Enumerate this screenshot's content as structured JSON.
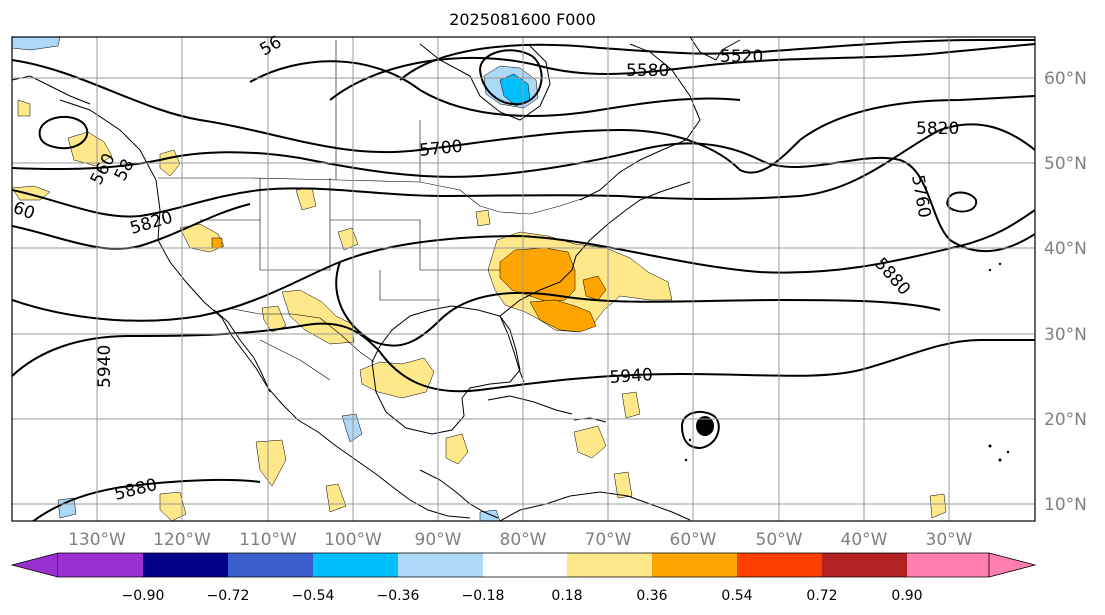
{
  "title": "2025081600 F000",
  "longitude_labels": [
    "130°W",
    "120°W",
    "110°W",
    "100°W",
    "90°W",
    "80°W",
    "70°W",
    "60°W",
    "50°W",
    "40°W",
    "30°W"
  ],
  "latitude_labels": [
    "60°N",
    "50°N",
    "40°N",
    "30°N",
    "20°N",
    "10°N"
  ],
  "contour_labels": [
    "5520",
    "5580",
    "5700",
    "5820",
    "5820",
    "5760",
    "5880",
    "5940",
    "5940",
    "5880",
    "60",
    "560",
    "58",
    "56"
  ],
  "colorbar": {
    "ticks": [
      "−0.90",
      "−0.72",
      "−0.54",
      "−0.36",
      "−0.18",
      "0.18",
      "0.36",
      "0.54",
      "0.72",
      "0.90"
    ],
    "colors": [
      "#9b30d0",
      "#00008b",
      "#3a5fcd",
      "#00bfff",
      "#add8f7",
      "#ffffff",
      "#ffe88a",
      "#ffa500",
      "#ff3f00",
      "#b22222",
      "#ff80b0"
    ]
  }
}
